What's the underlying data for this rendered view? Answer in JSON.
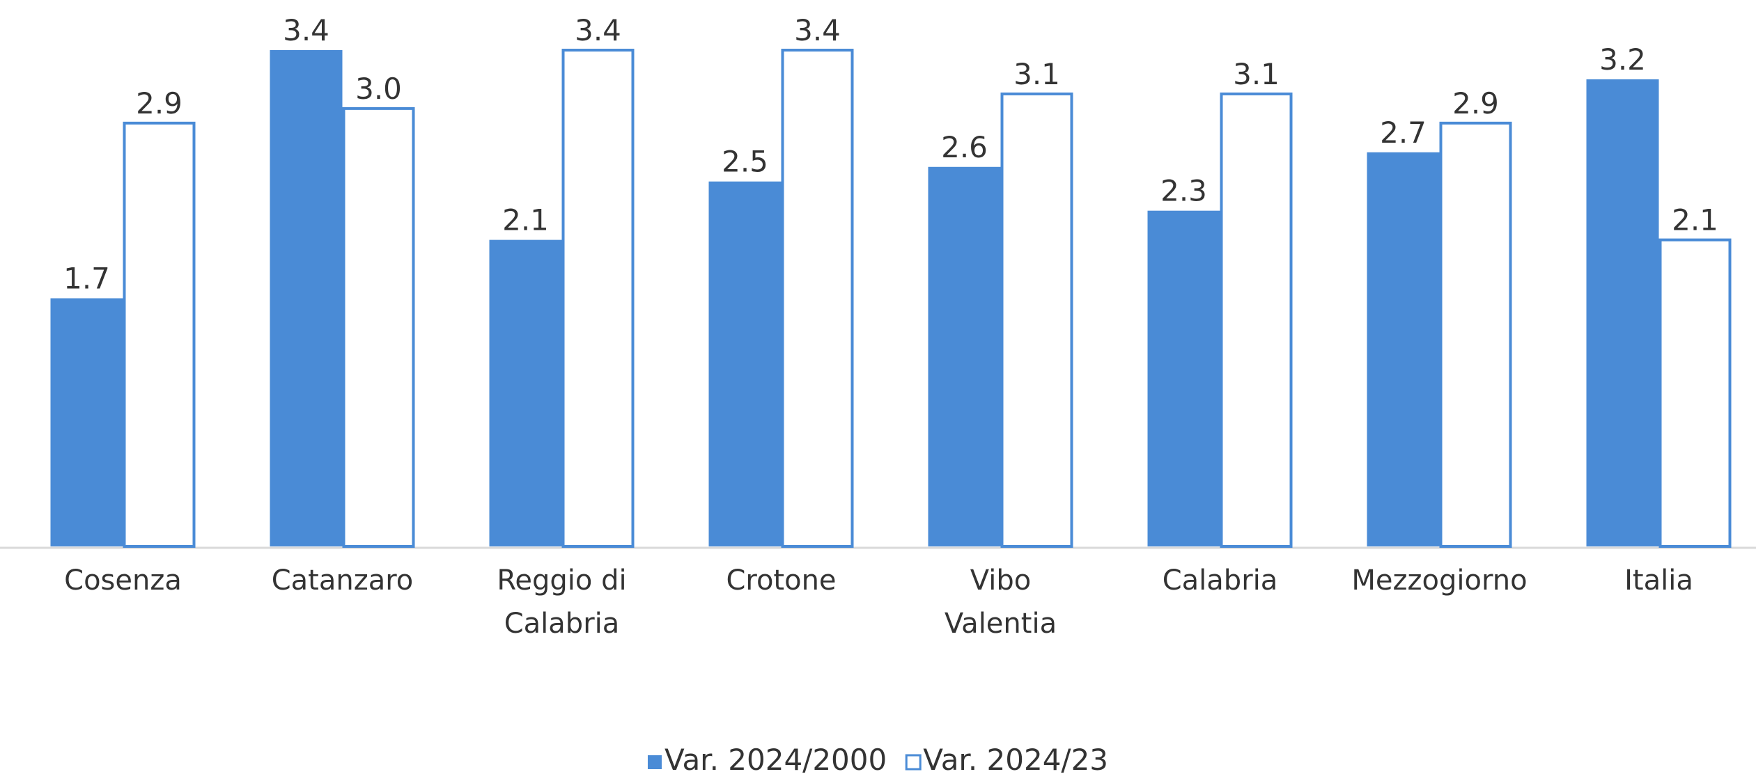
{
  "chart_data": {
    "type": "bar",
    "categories": [
      "Cosenza",
      "Catanzaro",
      "Reggio di Calabria",
      "Crotone",
      "Vibo Valentia",
      "Calabria",
      "Mezzogiorno",
      "Italia"
    ],
    "series": [
      {
        "name": "Var. 2024/2000",
        "color": "#4a8bd6",
        "fill": "#4a8bd6",
        "values": [
          1.7,
          3.4,
          2.1,
          2.5,
          2.6,
          2.3,
          2.7,
          3.2
        ],
        "value_labels": [
          "1.7",
          "3.4",
          "2.1",
          "2.5",
          "2.6",
          "2.3",
          "2.7",
          "3.2"
        ]
      },
      {
        "name": "Var. 2024/23",
        "color": "#4a8bd6",
        "fill": "#ffffff",
        "values": [
          2.9,
          3.0,
          3.4,
          3.4,
          3.1,
          3.1,
          2.9,
          2.1
        ],
        "value_labels": [
          "2.9",
          "3.0",
          "3.4",
          "3.4",
          "3.1",
          "3.1",
          "2.9",
          "2.1"
        ]
      }
    ],
    "legend": "bottom"
  }
}
